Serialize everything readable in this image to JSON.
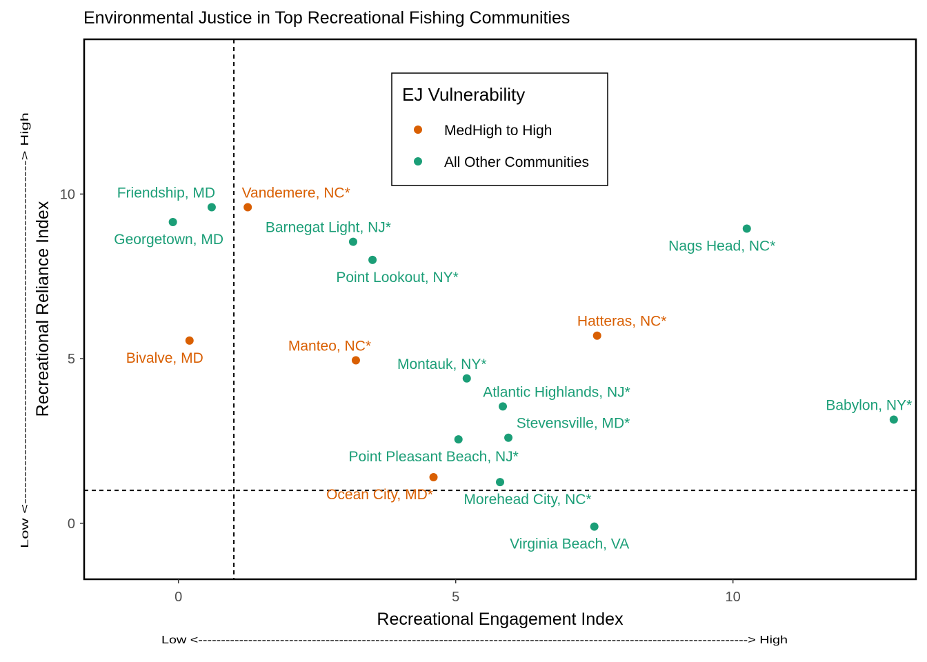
{
  "chart_data": {
    "type": "scatter",
    "title": "Environmental Justice in Top Recreational Fishing Communities",
    "xlabel": "Recreational Engagement Index",
    "ylabel": "Recreational Reliance Index",
    "xlim": [
      -1.7,
      13.3
    ],
    "ylim": [
      -1.7,
      14.7
    ],
    "xticks": [
      0,
      5,
      10
    ],
    "yticks": [
      0,
      5,
      10
    ],
    "grid": false,
    "reference_lines": {
      "vertical_x": 1.0,
      "horizontal_y": 1.0
    },
    "x_direction": {
      "low": "Low <",
      "dashes": "-------------------------------------------------------------------------------------------------------------------------",
      "high": "> High"
    },
    "y_direction": {
      "low": "Low <",
      "dashes": "---------------------------------------------------------------",
      "high": "> High"
    },
    "legend": {
      "title": "EJ Vulnerability",
      "placement": "top-center",
      "entries": [
        {
          "key": "high",
          "label": "MedHigh to High",
          "color": "#d95f02"
        },
        {
          "key": "other",
          "label": "All Other Communities",
          "color": "#1b9e77"
        }
      ]
    },
    "points": [
      {
        "name": "Friendship, MD",
        "x": 0.6,
        "y": 9.6,
        "group": "other"
      },
      {
        "name": "Georgetown, MD",
        "x": -0.1,
        "y": 9.15,
        "group": "other"
      },
      {
        "name": "Vandemere, NC*",
        "x": 1.25,
        "y": 9.6,
        "group": "high"
      },
      {
        "name": "Barnegat Light, NJ*",
        "x": 3.15,
        "y": 8.55,
        "group": "other"
      },
      {
        "name": "Point Lookout, NY*",
        "x": 3.5,
        "y": 8.0,
        "group": "other"
      },
      {
        "name": "Nags Head, NC*",
        "x": 10.25,
        "y": 8.95,
        "group": "other"
      },
      {
        "name": "Hatteras, NC*",
        "x": 7.55,
        "y": 5.7,
        "group": "high"
      },
      {
        "name": "Bivalve, MD",
        "x": 0.2,
        "y": 5.55,
        "group": "high"
      },
      {
        "name": "Manteo, NC*",
        "x": 3.2,
        "y": 4.95,
        "group": "high"
      },
      {
        "name": "Montauk, NY*",
        "x": 5.2,
        "y": 4.4,
        "group": "other"
      },
      {
        "name": "Atlantic Highlands, NJ*",
        "x": 5.85,
        "y": 3.55,
        "group": "other"
      },
      {
        "name": "Babylon, NY*",
        "x": 12.9,
        "y": 3.15,
        "group": "other"
      },
      {
        "name": "Stevensville, MD*",
        "x": 5.95,
        "y": 2.6,
        "group": "other"
      },
      {
        "name": "Point Pleasant Beach, NJ*",
        "x": 5.05,
        "y": 2.55,
        "group": "other"
      },
      {
        "name": "Ocean City, MD*",
        "x": 4.6,
        "y": 1.4,
        "group": "high"
      },
      {
        "name": "Morehead City, NC*",
        "x": 5.8,
        "y": 1.25,
        "group": "other"
      },
      {
        "name": "Virginia Beach, VA",
        "x": 7.5,
        "y": -0.1,
        "group": "other"
      }
    ]
  }
}
